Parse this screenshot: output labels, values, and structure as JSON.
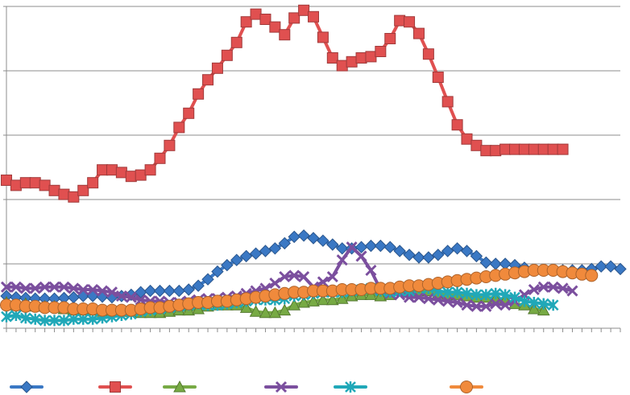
{
  "chart_data": {
    "type": "line",
    "title": "",
    "xlabel": "",
    "ylabel": "",
    "ylim": [
      0,
      500
    ],
    "grid": true,
    "legend_position": "bottom",
    "x_count": 65,
    "series": [
      {
        "color": "#3a78c4",
        "marker": "diamond",
        "values": [
          50,
          48,
          47,
          46,
          46,
          46,
          47,
          48,
          50,
          50,
          49,
          48,
          50,
          52,
          56,
          58,
          58,
          58,
          58,
          60,
          66,
          76,
          88,
          98,
          106,
          112,
          116,
          120,
          124,
          132,
          142,
          144,
          140,
          136,
          130,
          124,
          124,
          126,
          128,
          128,
          126,
          120,
          114,
          110,
          110,
          114,
          120,
          124,
          120,
          112,
          102,
          100,
          100,
          98,
          94,
          90,
          90,
          90,
          90,
          90,
          90,
          92,
          96,
          96,
          92
        ]
      },
      {
        "color": "#e05050",
        "marker": "square",
        "values": [
          230,
          222,
          226,
          226,
          222,
          214,
          208,
          204,
          214,
          226,
          246,
          246,
          242,
          236,
          238,
          246,
          264,
          284,
          312,
          334,
          364,
          386,
          404,
          424,
          444,
          476,
          488,
          480,
          468,
          456,
          482,
          494,
          484,
          452,
          420,
          408,
          414,
          420,
          422,
          430,
          450,
          478,
          476,
          458,
          426,
          390,
          352,
          316,
          294,
          284,
          276,
          276,
          278,
          278,
          278,
          278,
          278,
          278,
          278
        ]
      },
      {
        "color": "#77aa44",
        "marker": "triangle",
        "values": [
          40,
          36,
          38,
          34,
          34,
          34,
          30,
          28,
          28,
          28,
          26,
          26,
          26,
          26,
          24,
          24,
          24,
          26,
          28,
          28,
          30,
          34,
          36,
          36,
          36,
          32,
          26,
          24,
          24,
          28,
          36,
          40,
          42,
          44,
          44,
          46,
          50,
          52,
          52,
          50,
          52,
          60,
          60,
          58,
          58,
          54,
          52,
          52,
          50,
          48,
          48,
          46,
          44,
          38,
          36,
          30,
          28
        ]
      },
      {
        "color": "#7b4f9e",
        "marker": "x",
        "values": [
          64,
          64,
          62,
          62,
          64,
          64,
          64,
          62,
          60,
          60,
          58,
          56,
          50,
          48,
          44,
          42,
          42,
          40,
          40,
          42,
          44,
          46,
          46,
          48,
          50,
          54,
          58,
          62,
          70,
          80,
          82,
          80,
          64,
          72,
          80,
          106,
          126,
          112,
          90,
          60,
          54,
          52,
          48,
          48,
          46,
          44,
          42,
          40,
          36,
          34,
          34,
          38,
          36,
          42,
          52,
          60,
          64,
          64,
          62,
          58
        ]
      },
      {
        "color": "#20a8b8",
        "marker": "star",
        "values": [
          18,
          20,
          16,
          14,
          12,
          12,
          12,
          14,
          14,
          14,
          16,
          18,
          20,
          22,
          26,
          28,
          30,
          32,
          34,
          36,
          38,
          36,
          36,
          38,
          40,
          42,
          44,
          44,
          44,
          46,
          50,
          52,
          54,
          56,
          56,
          56,
          58,
          60,
          62,
          58,
          56,
          58,
          58,
          62,
          62,
          58,
          56,
          56,
          54,
          52,
          52,
          54,
          52,
          48,
          42,
          40,
          38,
          36
        ]
      },
      {
        "color": "#f08a3c",
        "marker": "circle",
        "values": [
          36,
          36,
          34,
          34,
          32,
          32,
          32,
          30,
          30,
          30,
          28,
          28,
          28,
          28,
          30,
          32,
          32,
          34,
          36,
          38,
          40,
          40,
          42,
          42,
          44,
          46,
          48,
          50,
          52,
          54,
          56,
          56,
          58,
          58,
          58,
          60,
          60,
          60,
          62,
          62,
          62,
          64,
          66,
          66,
          68,
          70,
          72,
          74,
          76,
          78,
          80,
          82,
          84,
          86,
          88,
          90,
          90,
          90,
          88,
          86,
          84,
          82
        ]
      }
    ]
  }
}
